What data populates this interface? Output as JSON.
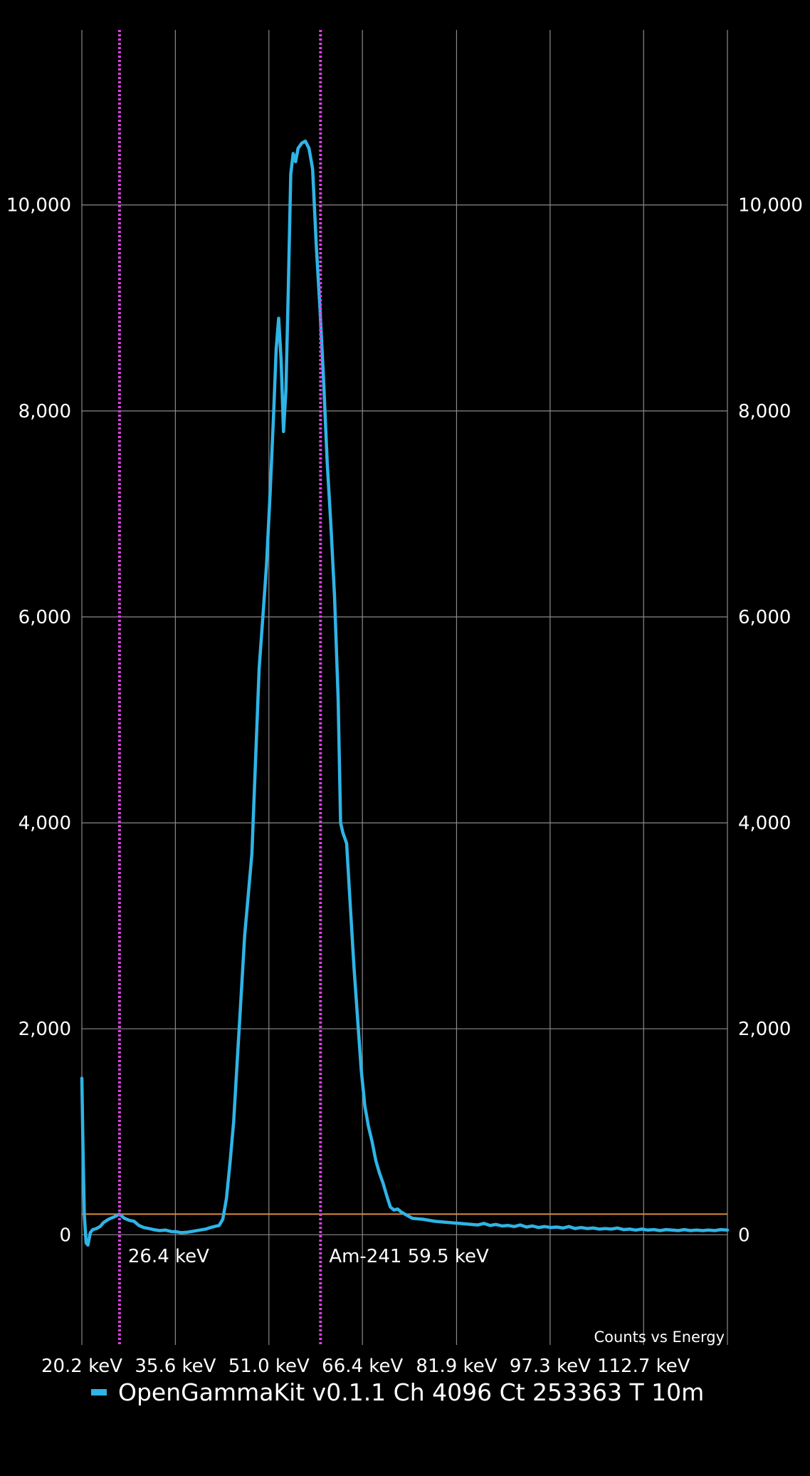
{
  "chart_data": {
    "type": "line",
    "title": "",
    "description": "Counts vs Energy",
    "xlabel": "",
    "ylabel": "",
    "x_ticks": [
      "20.2 keV",
      "35.6 keV",
      "51.0 keV",
      "66.4 keV",
      "81.9 keV",
      "97.3 keV",
      "112.7 keV"
    ],
    "x_tick_values": [
      20.2,
      35.6,
      51.0,
      66.4,
      81.9,
      97.3,
      112.7
    ],
    "xlim": [
      20.2,
      126.5
    ],
    "y_ticks": [
      "0",
      "2,000",
      "4,000",
      "6,000",
      "8,000",
      "10,000"
    ],
    "y_tick_values": [
      0,
      2000,
      4000,
      6000,
      8000,
      10000
    ],
    "ylim": [
      -1070,
      11700
    ],
    "grid": true,
    "legend_position": "bottom-left",
    "threshold_line": {
      "value": 200,
      "color": "#d98c3f"
    },
    "markers": [
      {
        "x": 26.4,
        "label": "26.4 keV",
        "color": "#e040e8"
      },
      {
        "x": 59.5,
        "label": "Am-241 59.5 keV",
        "color": "#e040e8"
      }
    ],
    "series": [
      {
        "name": "OpenGammaKit v0.1.1 Ch 4096 Ct 253363 T 10m",
        "color": "#2fb4e6",
        "points": [
          [
            20.2,
            1520
          ],
          [
            20.4,
            800
          ],
          [
            20.6,
            200
          ],
          [
            20.9,
            -80
          ],
          [
            21.2,
            -100
          ],
          [
            21.6,
            20
          ],
          [
            22.0,
            50
          ],
          [
            22.6,
            60
          ],
          [
            23.2,
            80
          ],
          [
            23.8,
            120
          ],
          [
            24.6,
            150
          ],
          [
            25.4,
            170
          ],
          [
            26.4,
            200
          ],
          [
            27.2,
            160
          ],
          [
            28.0,
            140
          ],
          [
            28.8,
            130
          ],
          [
            29.6,
            90
          ],
          [
            30.4,
            70
          ],
          [
            31.2,
            60
          ],
          [
            32.0,
            50
          ],
          [
            33.0,
            40
          ],
          [
            34.0,
            45
          ],
          [
            35.0,
            30
          ],
          [
            35.6,
            30
          ],
          [
            36.6,
            20
          ],
          [
            37.6,
            25
          ],
          [
            38.6,
            35
          ],
          [
            39.6,
            45
          ],
          [
            40.6,
            55
          ],
          [
            41.4,
            70
          ],
          [
            42.0,
            80
          ],
          [
            42.8,
            90
          ],
          [
            43.4,
            150
          ],
          [
            44.0,
            350
          ],
          [
            44.6,
            700
          ],
          [
            45.2,
            1100
          ],
          [
            45.8,
            1700
          ],
          [
            46.4,
            2300
          ],
          [
            47.0,
            2900
          ],
          [
            47.6,
            3300
          ],
          [
            48.2,
            3700
          ],
          [
            48.8,
            4600
          ],
          [
            49.4,
            5500
          ],
          [
            50.0,
            6000
          ],
          [
            50.6,
            6500
          ],
          [
            51.2,
            7200
          ],
          [
            51.8,
            8000
          ],
          [
            52.2,
            8600
          ],
          [
            52.6,
            8900
          ],
          [
            53.0,
            8500
          ],
          [
            53.4,
            7800
          ],
          [
            53.8,
            8200
          ],
          [
            54.2,
            9200
          ],
          [
            54.6,
            10300
          ],
          [
            55.0,
            10500
          ],
          [
            55.4,
            10420
          ],
          [
            55.8,
            10550
          ],
          [
            56.4,
            10600
          ],
          [
            57.0,
            10620
          ],
          [
            57.6,
            10550
          ],
          [
            58.2,
            10350
          ],
          [
            58.8,
            9600
          ],
          [
            59.4,
            9000
          ],
          [
            60.0,
            8300
          ],
          [
            60.6,
            7500
          ],
          [
            61.2,
            6900
          ],
          [
            61.8,
            6200
          ],
          [
            62.4,
            5200
          ],
          [
            62.8,
            4000
          ],
          [
            63.2,
            3900
          ],
          [
            63.8,
            3800
          ],
          [
            64.4,
            3200
          ],
          [
            65.0,
            2600
          ],
          [
            65.6,
            2100
          ],
          [
            66.2,
            1600
          ],
          [
            66.8,
            1250
          ],
          [
            67.4,
            1050
          ],
          [
            68.0,
            900
          ],
          [
            68.6,
            720
          ],
          [
            69.2,
            600
          ],
          [
            69.8,
            500
          ],
          [
            70.4,
            380
          ],
          [
            71.0,
            270
          ],
          [
            71.6,
            240
          ],
          [
            72.2,
            250
          ],
          [
            72.8,
            220
          ],
          [
            73.4,
            200
          ],
          [
            74.0,
            180
          ],
          [
            74.6,
            160
          ],
          [
            75.4,
            155
          ],
          [
            76.4,
            150
          ],
          [
            77.4,
            140
          ],
          [
            78.4,
            130
          ],
          [
            79.4,
            125
          ],
          [
            80.4,
            120
          ],
          [
            81.4,
            115
          ],
          [
            82.4,
            110
          ],
          [
            83.4,
            105
          ],
          [
            84.4,
            100
          ],
          [
            85.4,
            95
          ],
          [
            86.4,
            110
          ],
          [
            87.4,
            90
          ],
          [
            88.4,
            100
          ],
          [
            89.4,
            85
          ],
          [
            90.4,
            90
          ],
          [
            91.4,
            80
          ],
          [
            92.4,
            95
          ],
          [
            93.4,
            75
          ],
          [
            94.4,
            85
          ],
          [
            95.4,
            70
          ],
          [
            96.4,
            80
          ],
          [
            97.4,
            70
          ],
          [
            98.4,
            75
          ],
          [
            99.4,
            65
          ],
          [
            100.4,
            80
          ],
          [
            101.4,
            60
          ],
          [
            102.4,
            70
          ],
          [
            103.4,
            60
          ],
          [
            104.4,
            65
          ],
          [
            105.4,
            55
          ],
          [
            106.4,
            60
          ],
          [
            107.4,
            55
          ],
          [
            108.4,
            65
          ],
          [
            109.4,
            50
          ],
          [
            110.4,
            55
          ],
          [
            111.4,
            45
          ],
          [
            112.4,
            55
          ],
          [
            113.4,
            45
          ],
          [
            114.4,
            50
          ],
          [
            115.4,
            40
          ],
          [
            116.4,
            50
          ],
          [
            117.4,
            45
          ],
          [
            118.4,
            40
          ],
          [
            119.4,
            50
          ],
          [
            120.4,
            40
          ],
          [
            121.4,
            45
          ],
          [
            122.4,
            40
          ],
          [
            123.4,
            45
          ],
          [
            124.4,
            40
          ],
          [
            125.4,
            50
          ],
          [
            126.5,
            45
          ]
        ]
      }
    ]
  }
}
